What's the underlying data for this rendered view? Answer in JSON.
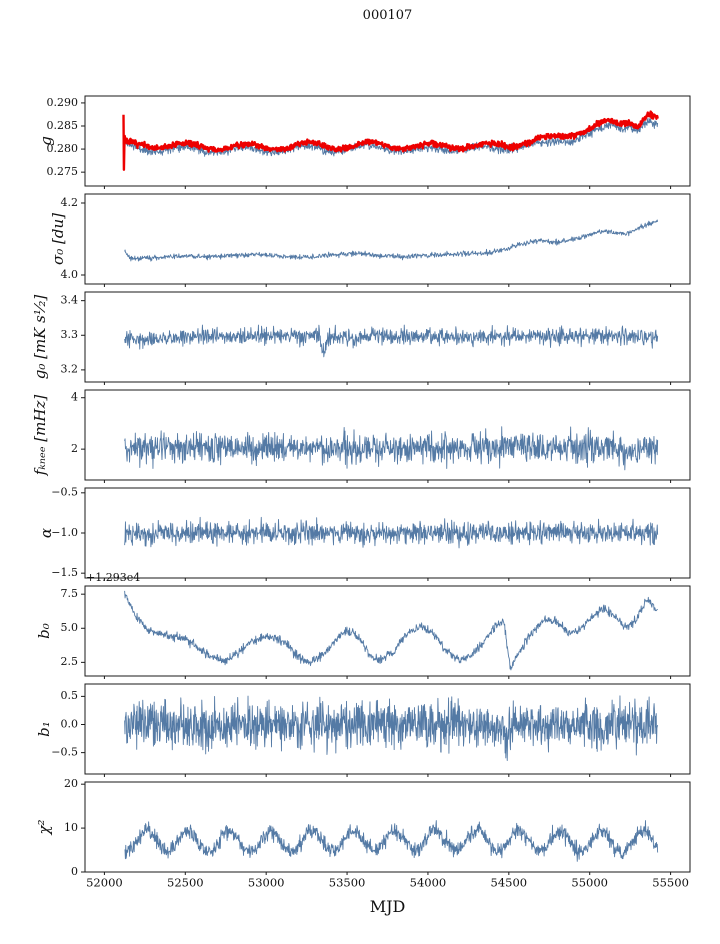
{
  "figure": {
    "title": "000107",
    "background": "#ffffff",
    "frame_color": "#1a1a1a"
  },
  "xaxis": {
    "label": "MJD",
    "lim": [
      51880,
      55620
    ],
    "ticks": [
      52000,
      52500,
      53000,
      53500,
      54000,
      54500,
      55000,
      55500
    ],
    "tick_labels": [
      "52000",
      "52500",
      "53000",
      "53500",
      "54000",
      "54500",
      "55000",
      "55500"
    ]
  },
  "chart_data": [
    {
      "type": "line",
      "ylabel": "g",
      "ylim": [
        0.272,
        0.2915
      ],
      "yticks": [
        0.275,
        0.28,
        0.285,
        0.29
      ],
      "ytick_labels": [
        "0.275",
        "0.280",
        "0.285",
        "0.290"
      ],
      "series": [
        {
          "name": "g_blue",
          "color": "#547aa5",
          "lw": 0.9,
          "seed": 11,
          "n_points": 1300,
          "x_start": 52125,
          "x_end": 55420,
          "noise_sd": 0.00045,
          "seasonal": {
            "amp": 0.0005,
            "period": 365,
            "phase": 52050
          },
          "anchors_x": [
            52125,
            52140,
            52200,
            52300,
            52400,
            52500,
            52600,
            52700,
            52800,
            52900,
            53000,
            53100,
            53200,
            53300,
            53400,
            53500,
            53600,
            53700,
            53800,
            53900,
            54000,
            54100,
            54200,
            54300,
            54400,
            54500,
            54600,
            54700,
            54800,
            54900,
            55000,
            55100,
            55150,
            55200,
            55250,
            55300,
            55350,
            55420
          ],
          "anchors_y": [
            0.2818,
            0.2808,
            0.28,
            0.2799,
            0.2804,
            0.2801,
            0.2797,
            0.2796,
            0.2801,
            0.2799,
            0.2796,
            0.2799,
            0.2802,
            0.2803,
            0.2798,
            0.28,
            0.2803,
            0.2804,
            0.28,
            0.2797,
            0.2799,
            0.2801,
            0.2802,
            0.2799,
            0.2801,
            0.2804,
            0.2806,
            0.281,
            0.2816,
            0.2823,
            0.2832,
            0.2846,
            0.285,
            0.2846,
            0.2852,
            0.2843,
            0.2858,
            0.2847
          ]
        },
        {
          "name": "g_red",
          "color": "#ed0000",
          "lw": 2.4,
          "seed": 7,
          "n_points": 1300,
          "x_start": 52118,
          "x_end": 55420,
          "noise_sd": 0.0003,
          "seasonal": {
            "amp": 0.0006,
            "period": 365,
            "phase": 52080
          },
          "anchors_x": [
            52118,
            52121,
            52124,
            52130,
            52200,
            52300,
            52400,
            52500,
            52600,
            52700,
            52800,
            52900,
            53000,
            53100,
            53200,
            53300,
            53400,
            53500,
            53600,
            53700,
            53800,
            53900,
            54000,
            54100,
            54200,
            54300,
            54400,
            54500,
            54600,
            54700,
            54800,
            54900,
            55000,
            55060,
            55120,
            55180,
            55240,
            55300,
            55360,
            55420
          ],
          "anchors_y": [
            0.2872,
            0.2732,
            0.283,
            0.2812,
            0.2806,
            0.2806,
            0.2811,
            0.2808,
            0.2803,
            0.2803,
            0.2808,
            0.2805,
            0.2803,
            0.2806,
            0.2809,
            0.281,
            0.2805,
            0.2806,
            0.2809,
            0.2811,
            0.2807,
            0.2804,
            0.2806,
            0.2809,
            0.2807,
            0.2804,
            0.2808,
            0.281,
            0.2815,
            0.282,
            0.2826,
            0.2836,
            0.2844,
            0.2852,
            0.2858,
            0.2855,
            0.2862,
            0.2853,
            0.2877,
            0.2862
          ]
        }
      ]
    },
    {
      "type": "line",
      "ylabel": "σ₀ [du]",
      "ylim": [
        3.975,
        4.225
      ],
      "yticks": [
        4.0,
        4.2
      ],
      "ytick_labels": [
        "4.0",
        "4.2"
      ],
      "series": [
        {
          "name": "sigma0",
          "color": "#547aa5",
          "lw": 0.9,
          "seed": 21,
          "n_points": 1200,
          "x_start": 52125,
          "x_end": 55420,
          "noise_sd": 0.0035,
          "seasonal": null,
          "anchors_x": [
            52125,
            52150,
            52200,
            52350,
            52500,
            52650,
            52800,
            52950,
            53100,
            53250,
            53400,
            53550,
            53700,
            53850,
            54000,
            54150,
            54300,
            54400,
            54500,
            54600,
            54700,
            54800,
            54900,
            55000,
            55080,
            55150,
            55220,
            55300,
            55360,
            55420
          ],
          "anchors_y": [
            4.068,
            4.05,
            4.045,
            4.05,
            4.053,
            4.05,
            4.054,
            4.057,
            4.052,
            4.049,
            4.056,
            4.06,
            4.054,
            4.051,
            4.054,
            4.058,
            4.061,
            4.063,
            4.075,
            4.088,
            4.097,
            4.091,
            4.1,
            4.112,
            4.125,
            4.118,
            4.114,
            4.13,
            4.14,
            4.15
          ]
        }
      ]
    },
    {
      "type": "line",
      "ylabel": "g₀ [mK s¹⁄₂]",
      "ylim": [
        3.165,
        3.425
      ],
      "yticks": [
        3.2,
        3.3,
        3.4
      ],
      "ytick_labels": [
        "3.2",
        "3.3",
        "3.4"
      ],
      "series": [
        {
          "name": "g0",
          "color": "#547aa5",
          "lw": 0.9,
          "seed": 31,
          "n_points": 1200,
          "x_start": 52125,
          "x_end": 55420,
          "noise_sd": 0.012,
          "seasonal": null,
          "anchors_x": [
            52125,
            52200,
            52400,
            52700,
            53000,
            53330,
            53355,
            53380,
            53700,
            54000,
            54300,
            54600,
            54900,
            55200,
            55420
          ],
          "anchors_y": [
            3.283,
            3.29,
            3.293,
            3.296,
            3.298,
            3.295,
            3.245,
            3.295,
            3.297,
            3.299,
            3.296,
            3.298,
            3.3,
            3.297,
            3.295
          ]
        }
      ]
    },
    {
      "type": "line",
      "ylabel": "fₖₙₑₑ [mHz]",
      "ylim": [
        0.8,
        4.3
      ],
      "yticks": [
        2,
        4
      ],
      "ytick_labels": [
        "2",
        "4"
      ],
      "series": [
        {
          "name": "f_knee",
          "color": "#547aa5",
          "lw": 0.9,
          "seed": 41,
          "n_points": 1300,
          "x_start": 52125,
          "x_end": 55420,
          "noise_sd": 0.29,
          "seasonal": null,
          "anchors_x": [
            52125,
            55420
          ],
          "anchors_y": [
            2.05,
            2.05
          ]
        }
      ]
    },
    {
      "type": "line",
      "ylabel": "α",
      "ylim": [
        -1.56,
        -0.44
      ],
      "yticks": [
        -1.5,
        -1.0,
        -0.5
      ],
      "ytick_labels": [
        "−1.5",
        "−1.0",
        "−0.5"
      ],
      "series": [
        {
          "name": "alpha",
          "color": "#547aa5",
          "lw": 0.9,
          "seed": 51,
          "n_points": 1300,
          "x_start": 52125,
          "x_end": 55420,
          "noise_sd": 0.068,
          "seasonal": null,
          "anchors_x": [
            52125,
            55420
          ],
          "anchors_y": [
            -1.0,
            -1.0
          ]
        }
      ]
    },
    {
      "type": "line",
      "ylabel": "b₀",
      "offset_text": "+1.293e4",
      "ylim": [
        1.5,
        8.1
      ],
      "yticks": [
        2.5,
        5.0,
        7.5
      ],
      "ytick_labels": [
        "2.5",
        "5.0",
        "7.5"
      ],
      "series": [
        {
          "name": "b0",
          "color": "#547aa5",
          "lw": 0.9,
          "seed": 61,
          "n_points": 1200,
          "x_start": 52125,
          "x_end": 55420,
          "noise_sd": 0.16,
          "seasonal": null,
          "anchors_x": [
            52125,
            52180,
            52250,
            52330,
            52420,
            52500,
            52580,
            52660,
            52740,
            52820,
            52900,
            52980,
            53060,
            53130,
            53200,
            53270,
            53350,
            53430,
            53500,
            53570,
            53640,
            53710,
            53790,
            53870,
            53950,
            54030,
            54100,
            54180,
            54260,
            54340,
            54420,
            54470,
            54510,
            54560,
            54640,
            54720,
            54800,
            54870,
            54940,
            55010,
            55080,
            55150,
            55220,
            55290,
            55350,
            55420
          ],
          "anchors_y": [
            7.5,
            6.2,
            5.0,
            4.6,
            4.4,
            4.2,
            3.6,
            2.9,
            2.6,
            3.1,
            3.9,
            4.4,
            4.3,
            3.8,
            2.9,
            2.5,
            3.0,
            4.2,
            4.8,
            4.4,
            3.0,
            2.7,
            3.3,
            4.6,
            5.2,
            4.7,
            3.5,
            2.7,
            2.9,
            4.0,
            5.2,
            5.4,
            2.1,
            3.2,
            4.6,
            5.6,
            5.5,
            4.7,
            4.9,
            5.8,
            6.4,
            6.0,
            5.1,
            5.6,
            7.1,
            6.4
          ]
        }
      ]
    },
    {
      "type": "line",
      "ylabel": "b₁",
      "ylim": [
        -0.88,
        0.72
      ],
      "yticks": [
        -0.5,
        0.0,
        0.5
      ],
      "ytick_labels": [
        "−0.5",
        "0.0",
        "0.5"
      ],
      "series": [
        {
          "name": "b1",
          "color": "#547aa5",
          "lw": 0.9,
          "seed": 71,
          "n_points": 1500,
          "x_start": 52125,
          "x_end": 55420,
          "noise_sd": 0.2,
          "seasonal": null,
          "anchors_x": [
            52125,
            54450,
            54490,
            54520,
            55420
          ],
          "anchors_y": [
            0.0,
            0.0,
            -0.3,
            0.0,
            0.0
          ]
        }
      ]
    },
    {
      "type": "line",
      "ylabel": "χ²",
      "ylim": [
        0,
        20.5
      ],
      "yticks": [
        0,
        10,
        20
      ],
      "ytick_labels": [
        "0",
        "10",
        "20"
      ],
      "series": [
        {
          "name": "chi2",
          "color": "#547aa5",
          "lw": 0.9,
          "seed": 81,
          "n_points": 1400,
          "x_start": 52125,
          "x_end": 55420,
          "noise_sd": 0.85,
          "seasonal": {
            "amp": 2.3,
            "period": 255,
            "phase": 52200
          },
          "anchors_x": [
            52125,
            52800,
            53500,
            54200,
            54900,
            55420
          ],
          "anchors_y": [
            7.2,
            6.8,
            7.0,
            7.2,
            6.9,
            7.0
          ]
        }
      ]
    }
  ]
}
